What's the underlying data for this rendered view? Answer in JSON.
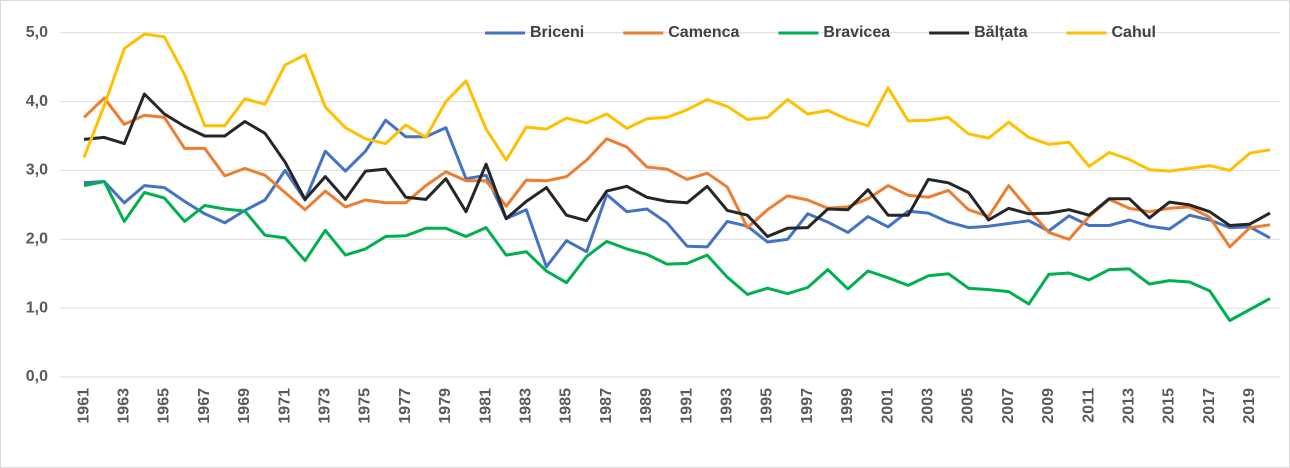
{
  "chart_data": {
    "type": "line",
    "categories": [
      "1961",
      null,
      "1963",
      null,
      "1965",
      null,
      "1967",
      null,
      "1969",
      null,
      "1971",
      null,
      "1973",
      null,
      "1975",
      null,
      "1977",
      null,
      "1979",
      null,
      "1981",
      null,
      "1983",
      null,
      "1985",
      null,
      "1987",
      null,
      "1989",
      null,
      "1991",
      null,
      "1993",
      null,
      "1995",
      null,
      "1997",
      null,
      "1999",
      null,
      "2001",
      null,
      "2003",
      null,
      "2005",
      null,
      "2007",
      null,
      "2009",
      null,
      "2011",
      null,
      "2013",
      null,
      "2015",
      null,
      "2017",
      null,
      "2019",
      null
    ],
    "series": [
      {
        "name": "Briceni",
        "color": "#4472c4",
        "values": [
          2.82,
          2.84,
          2.53,
          2.78,
          2.75,
          2.55,
          2.37,
          2.24,
          2.42,
          2.57,
          3.0,
          2.57,
          3.28,
          2.99,
          3.28,
          3.73,
          3.49,
          3.49,
          3.62,
          2.88,
          2.93,
          2.3,
          2.43,
          1.6,
          1.98,
          1.82,
          2.65,
          2.4,
          2.44,
          2.24,
          1.9,
          1.89,
          2.26,
          2.19,
          1.96,
          2.0,
          2.37,
          2.25,
          2.1,
          2.33,
          2.18,
          2.41,
          2.38,
          2.25,
          2.17,
          2.19,
          2.23,
          2.27,
          2.12,
          2.34,
          2.2,
          2.2,
          2.28,
          2.19,
          2.15,
          2.35,
          2.28,
          2.17,
          2.18,
          2.02
        ]
      },
      {
        "name": "Camenca",
        "color": "#ed7d31",
        "values": [
          3.77,
          4.05,
          3.67,
          3.8,
          3.77,
          3.32,
          3.32,
          2.92,
          3.03,
          2.93,
          2.68,
          2.43,
          2.7,
          2.47,
          2.57,
          2.53,
          2.53,
          2.78,
          2.98,
          2.85,
          2.85,
          2.48,
          2.86,
          2.85,
          2.91,
          3.15,
          3.46,
          3.34,
          3.05,
          3.02,
          2.87,
          2.96,
          2.76,
          2.17,
          2.43,
          2.63,
          2.57,
          2.45,
          2.47,
          2.59,
          2.78,
          2.64,
          2.61,
          2.71,
          2.43,
          2.33,
          2.78,
          2.43,
          2.1,
          2.0,
          2.33,
          2.58,
          2.45,
          2.4,
          2.45,
          2.47,
          2.32,
          1.89,
          2.17,
          2.21
        ]
      },
      {
        "name": "Bravicea",
        "color": "#00b050",
        "values": [
          2.78,
          2.84,
          2.26,
          2.68,
          2.6,
          2.26,
          2.49,
          2.44,
          2.41,
          2.06,
          2.02,
          1.69,
          2.13,
          1.77,
          1.86,
          2.04,
          2.05,
          2.16,
          2.16,
          2.04,
          2.17,
          1.77,
          1.82,
          1.54,
          1.37,
          1.75,
          1.97,
          1.86,
          1.78,
          1.64,
          1.65,
          1.77,
          1.45,
          1.2,
          1.29,
          1.21,
          1.3,
          1.56,
          1.28,
          1.54,
          1.44,
          1.33,
          1.47,
          1.5,
          1.29,
          1.27,
          1.24,
          1.06,
          1.49,
          1.51,
          1.41,
          1.56,
          1.57,
          1.35,
          1.4,
          1.38,
          1.25,
          0.82,
          0.98,
          1.14
        ]
      },
      {
        "name": "Bălțata",
        "color": "#262626",
        "values": [
          3.45,
          3.48,
          3.39,
          4.11,
          3.82,
          3.64,
          3.5,
          3.5,
          3.71,
          3.54,
          3.12,
          2.58,
          2.91,
          2.58,
          2.99,
          3.02,
          2.61,
          2.58,
          2.88,
          2.4,
          3.09,
          2.3,
          2.55,
          2.75,
          2.35,
          2.27,
          2.7,
          2.77,
          2.61,
          2.55,
          2.53,
          2.77,
          2.42,
          2.35,
          2.04,
          2.16,
          2.17,
          2.44,
          2.43,
          2.72,
          2.35,
          2.35,
          2.87,
          2.82,
          2.68,
          2.28,
          2.45,
          2.37,
          2.38,
          2.43,
          2.35,
          2.59,
          2.59,
          2.31,
          2.54,
          2.5,
          2.4,
          2.2,
          2.22,
          2.38
        ]
      },
      {
        "name": "Cahul",
        "color": "#ffc000",
        "values": [
          3.19,
          3.94,
          4.77,
          4.98,
          4.94,
          4.39,
          3.65,
          3.65,
          4.04,
          3.96,
          4.53,
          4.68,
          3.92,
          3.62,
          3.46,
          3.39,
          3.66,
          3.48,
          4.0,
          4.3,
          3.6,
          3.15,
          3.63,
          3.6,
          3.76,
          3.69,
          3.82,
          3.61,
          3.75,
          3.77,
          3.88,
          4.03,
          3.93,
          3.74,
          3.77,
          4.03,
          3.82,
          3.87,
          3.74,
          3.65,
          4.2,
          3.72,
          3.73,
          3.77,
          3.53,
          3.47,
          3.7,
          3.48,
          3.38,
          3.41,
          3.06,
          3.26,
          3.16,
          3.01,
          2.99,
          3.03,
          3.07,
          3.0,
          3.25,
          3.3
        ]
      }
    ],
    "ylim": [
      0,
      5.33
    ],
    "yticks": [
      {
        "value": 0,
        "label": "0,0"
      },
      {
        "value": 1,
        "label": "1,0"
      },
      {
        "value": 2,
        "label": "2,0"
      },
      {
        "value": 3,
        "label": "3,0"
      },
      {
        "value": 4,
        "label": "4,0"
      },
      {
        "value": 5,
        "label": "5,0"
      }
    ],
    "grid": true,
    "legend": "top-right"
  }
}
